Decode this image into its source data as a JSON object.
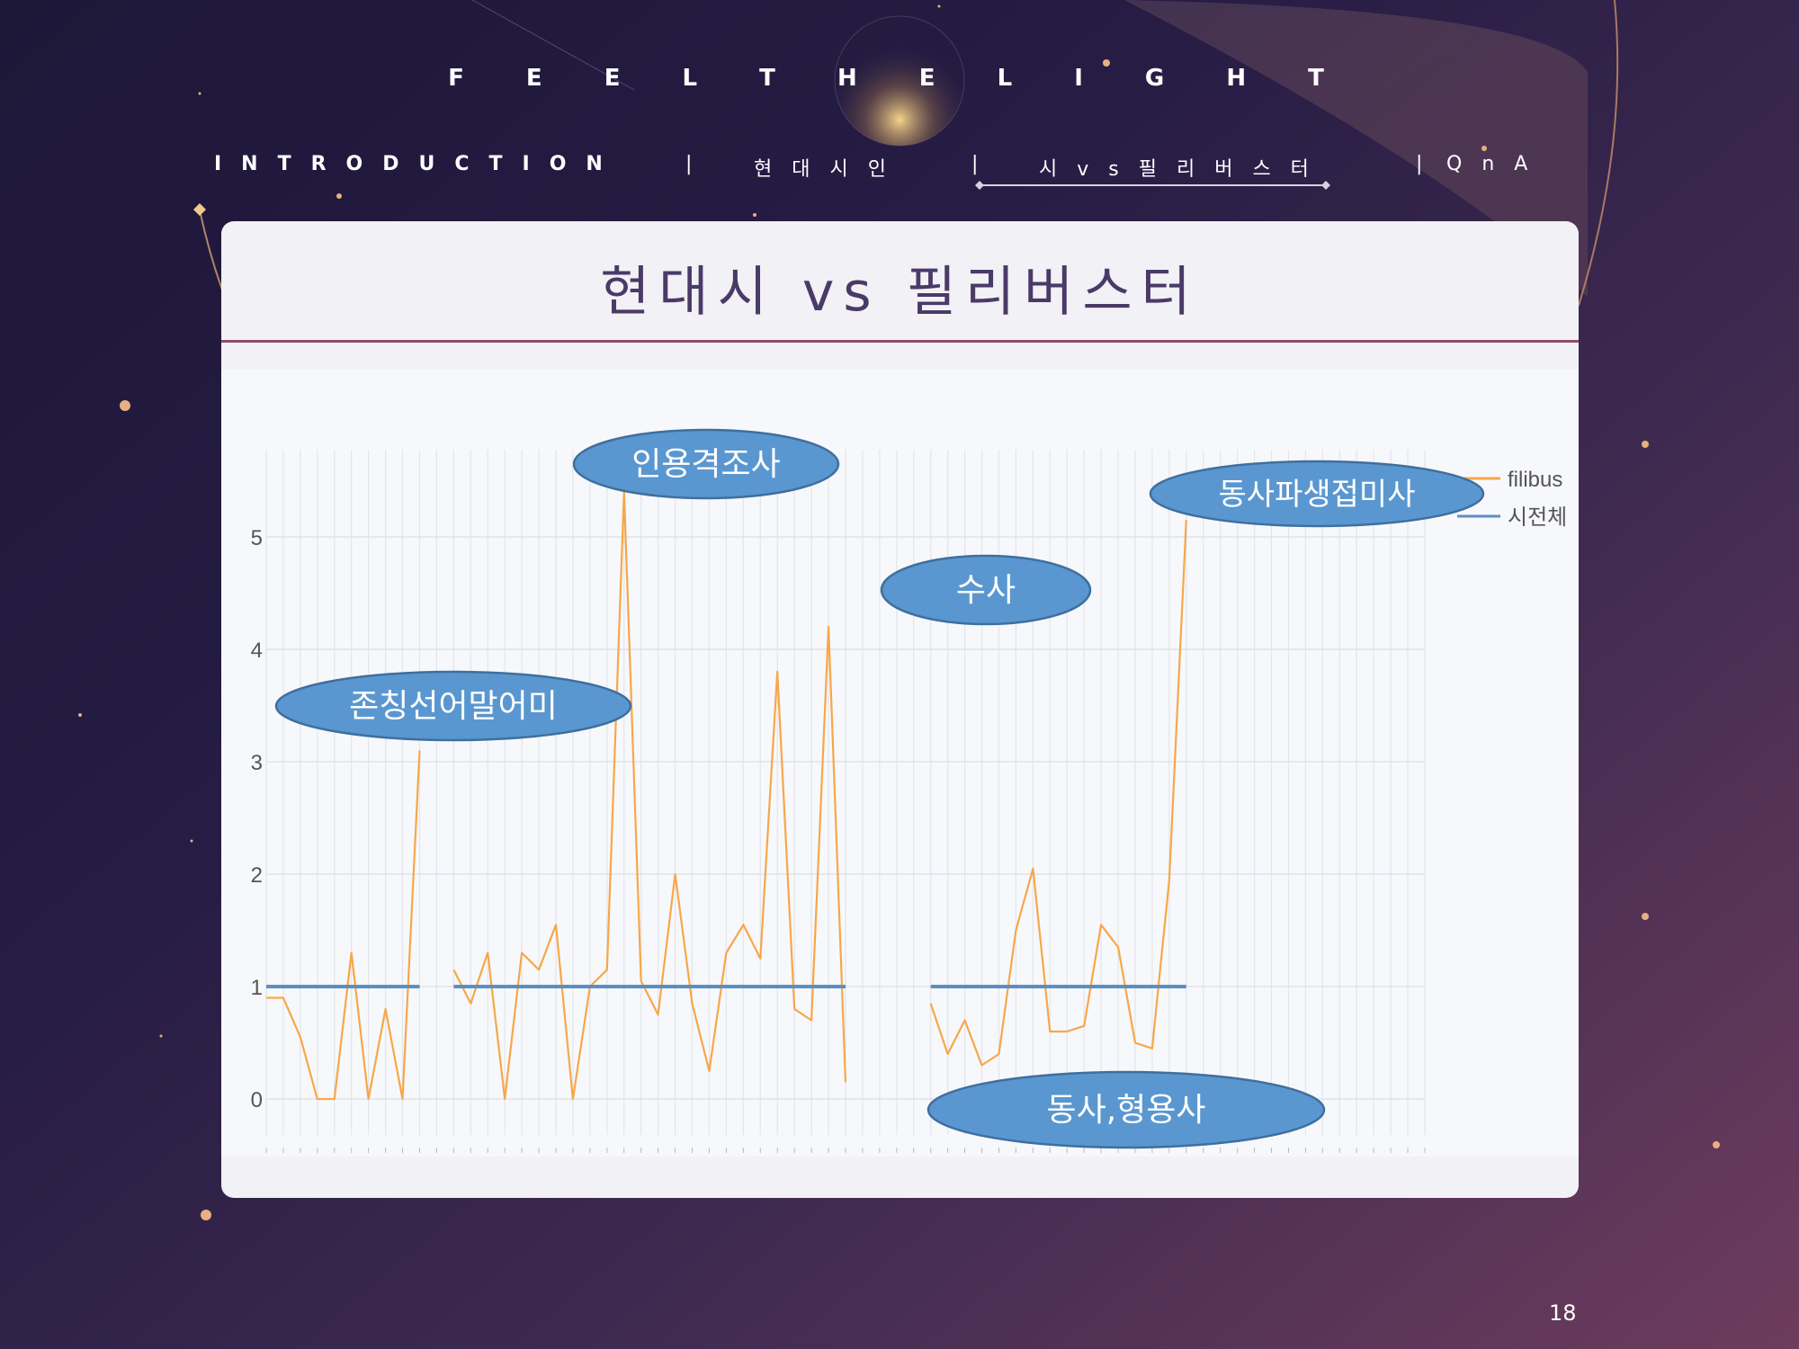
{
  "header": {
    "brand": "F E E L T H E L I G H T"
  },
  "nav": {
    "items": [
      {
        "label": "INTRODUCTION"
      },
      {
        "label": "현대시인"
      },
      {
        "label": "시vs필리버스터"
      },
      {
        "label": "QnA"
      }
    ],
    "separator": "|"
  },
  "slide": {
    "title": "현대시 vs 필리버스터",
    "page_number": "18"
  },
  "chart_data": {
    "type": "line",
    "ylim": [
      0,
      6
    ],
    "yticks": [
      "0",
      "1",
      "2",
      "3",
      "4",
      "5"
    ],
    "grid": true,
    "legend_position": "top-right",
    "series": [
      {
        "name": "filibus",
        "color": "#f7a74a",
        "segments": [
          [
            0.9,
            0.9,
            0.55,
            0.0,
            0.0,
            1.3,
            0.0,
            0.8,
            0.0,
            3.1
          ],
          [
            1.15,
            0.85,
            1.3,
            0.0,
            1.3,
            1.15,
            1.55,
            0.0,
            1.0,
            1.15,
            5.4,
            1.05,
            0.75,
            2.0,
            0.85,
            0.25,
            1.3,
            1.55,
            1.25,
            3.8,
            0.8,
            0.7,
            4.2,
            0.15
          ],
          [
            0.85,
            0.4,
            0.7,
            0.3,
            0.4,
            1.5,
            2.05,
            0.6,
            0.6,
            0.65,
            1.55,
            1.35,
            0.5,
            0.45,
            1.95,
            5.15
          ]
        ]
      },
      {
        "name": "시전체",
        "color": "#5b8fc4",
        "segments": [
          [
            1.0,
            1.0,
            1.0,
            1.0,
            1.0,
            1.0,
            1.0,
            1.0,
            1.0,
            1.0
          ],
          [
            1.0,
            1.0,
            1.0,
            1.0,
            1.0,
            1.0,
            1.0,
            1.0,
            1.0,
            1.0,
            1.0,
            1.0,
            1.0,
            1.0,
            1.0,
            1.0,
            1.0,
            1.0,
            1.0,
            1.0,
            1.0,
            1.0,
            1.0,
            1.0
          ],
          [
            1.0,
            1.0,
            1.0,
            1.0,
            1.0,
            1.0,
            1.0,
            1.0,
            1.0,
            1.0,
            1.0,
            1.0,
            1.0,
            1.0,
            1.0,
            1.0
          ]
        ]
      }
    ],
    "annotations": [
      {
        "text": "존칭선어말어미"
      },
      {
        "text": "인용격조사"
      },
      {
        "text": "수사"
      },
      {
        "text": "동사파생접미사"
      },
      {
        "text": "동사,형용사"
      }
    ],
    "annotation_color": "#5a97d0"
  }
}
